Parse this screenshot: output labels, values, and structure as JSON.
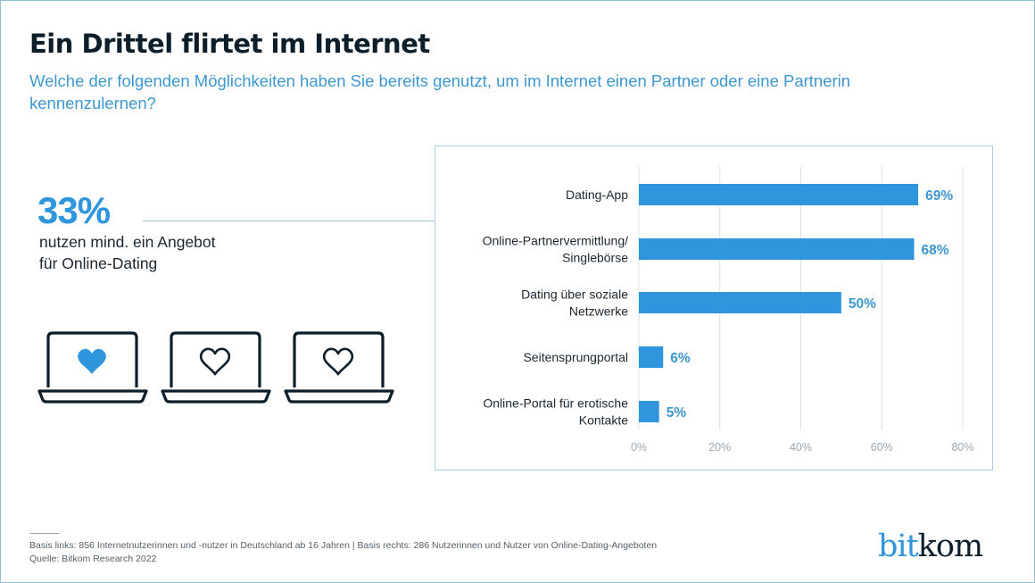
{
  "header": {
    "title": "Ein Drittel flirtet im Internet",
    "subtitle": "Welche der folgenden Möglichkeiten haben Sie bereits genutzt, um im Internet einen Partner oder eine Partnerin kennenzulernen?"
  },
  "stat": {
    "value": "33%",
    "line1": "nutzen mind. ein Angebot",
    "line2": "für Online-Dating",
    "icons": [
      {
        "name": "laptop-heart-filled-icon",
        "filled": true
      },
      {
        "name": "laptop-heart-outline-icon",
        "filled": false
      },
      {
        "name": "laptop-heart-outline-icon",
        "filled": false
      }
    ]
  },
  "colors": {
    "accent": "#2f95dc",
    "dark": "#0d1e2b",
    "grid": "#d8e4ea",
    "tick": "#9aa8b2",
    "value_label": "#3d97d0"
  },
  "chart_data": {
    "type": "bar",
    "orientation": "horizontal",
    "categories": [
      [
        "Dating-App"
      ],
      [
        "Online-Partnervermittlung/",
        "Singlebörse"
      ],
      [
        "Dating über soziale",
        "Netzwerke"
      ],
      [
        "Seitensprungportal"
      ],
      [
        "Online-Portal für erotische",
        "Kontakte"
      ]
    ],
    "values": [
      69,
      68,
      50,
      6,
      5
    ],
    "value_labels": [
      "69%",
      "68%",
      "50%",
      "6%",
      "5%"
    ],
    "xlim": [
      0,
      80
    ],
    "xticks": [
      0,
      20,
      40,
      60,
      80
    ],
    "xtick_labels": [
      "0%",
      "20%",
      "40%",
      "60%",
      "80%"
    ],
    "grid": true,
    "xlabel": "",
    "ylabel": "",
    "unit": "%"
  },
  "footer": {
    "basis": "Basis links: 856 Internetnutzerinnen und -nutzer in Deutschland ab 16 Jahren | Basis rechts: 286 Nutzerinnen und Nutzer von Online-Dating-Angeboten",
    "source": "Quelle: Bitkom Research 2022",
    "logo_part1": "bit",
    "logo_part2": "kom"
  }
}
